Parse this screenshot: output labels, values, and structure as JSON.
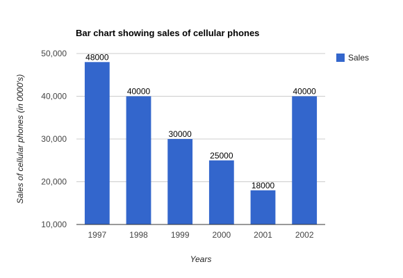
{
  "chart_data": {
    "type": "bar",
    "title": "Bar chart showing sales of cellular phones",
    "xlabel": "Years",
    "ylabel": "Sales of cellular phones (in 0000's)",
    "categories": [
      "1997",
      "1998",
      "1999",
      "2000",
      "2001",
      "2002"
    ],
    "series": [
      {
        "name": "Sales",
        "values": [
          48000,
          40000,
          30000,
          25000,
          18000,
          40000
        ],
        "data_labels": [
          "48000",
          "40000",
          "30000",
          "25000",
          "18000",
          "40000"
        ],
        "color": "#3366cc"
      }
    ],
    "ylim": [
      10000,
      50000
    ],
    "yticks": [
      10000,
      20000,
      30000,
      40000,
      50000
    ],
    "ytick_labels": [
      "10,000",
      "20,000",
      "30,000",
      "40,000",
      "50,000"
    ],
    "grid": true,
    "legend_position": "right"
  }
}
